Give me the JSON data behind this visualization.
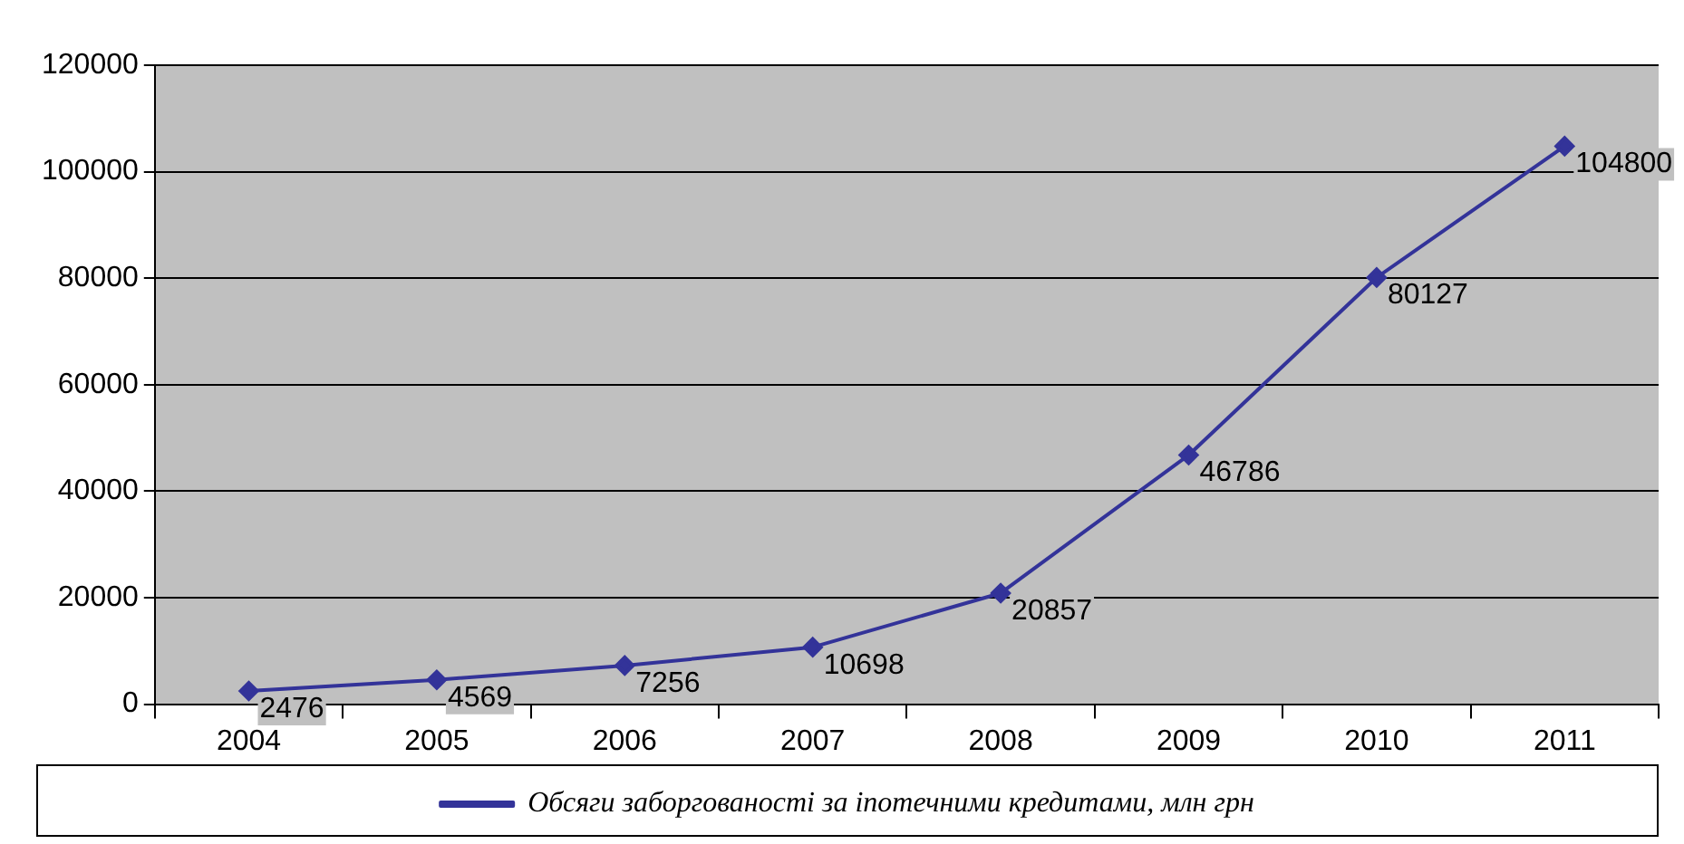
{
  "chart_data": {
    "type": "line",
    "categories": [
      "2004",
      "2005",
      "2006",
      "2007",
      "2008",
      "2009",
      "2010",
      "2011"
    ],
    "series": [
      {
        "name": "Обсяги заборгованості за іпотечними кредитами, млн грн",
        "color": "#333399",
        "values": [
          2476,
          4569,
          7256,
          10698,
          20857,
          46786,
          80127,
          104800
        ]
      }
    ],
    "ylim": [
      0,
      120000
    ],
    "yticks": [
      0,
      20000,
      40000,
      60000,
      80000,
      100000,
      120000
    ],
    "grid": "y",
    "legend": "bottom",
    "marker": "diamond",
    "data_labels": true
  }
}
